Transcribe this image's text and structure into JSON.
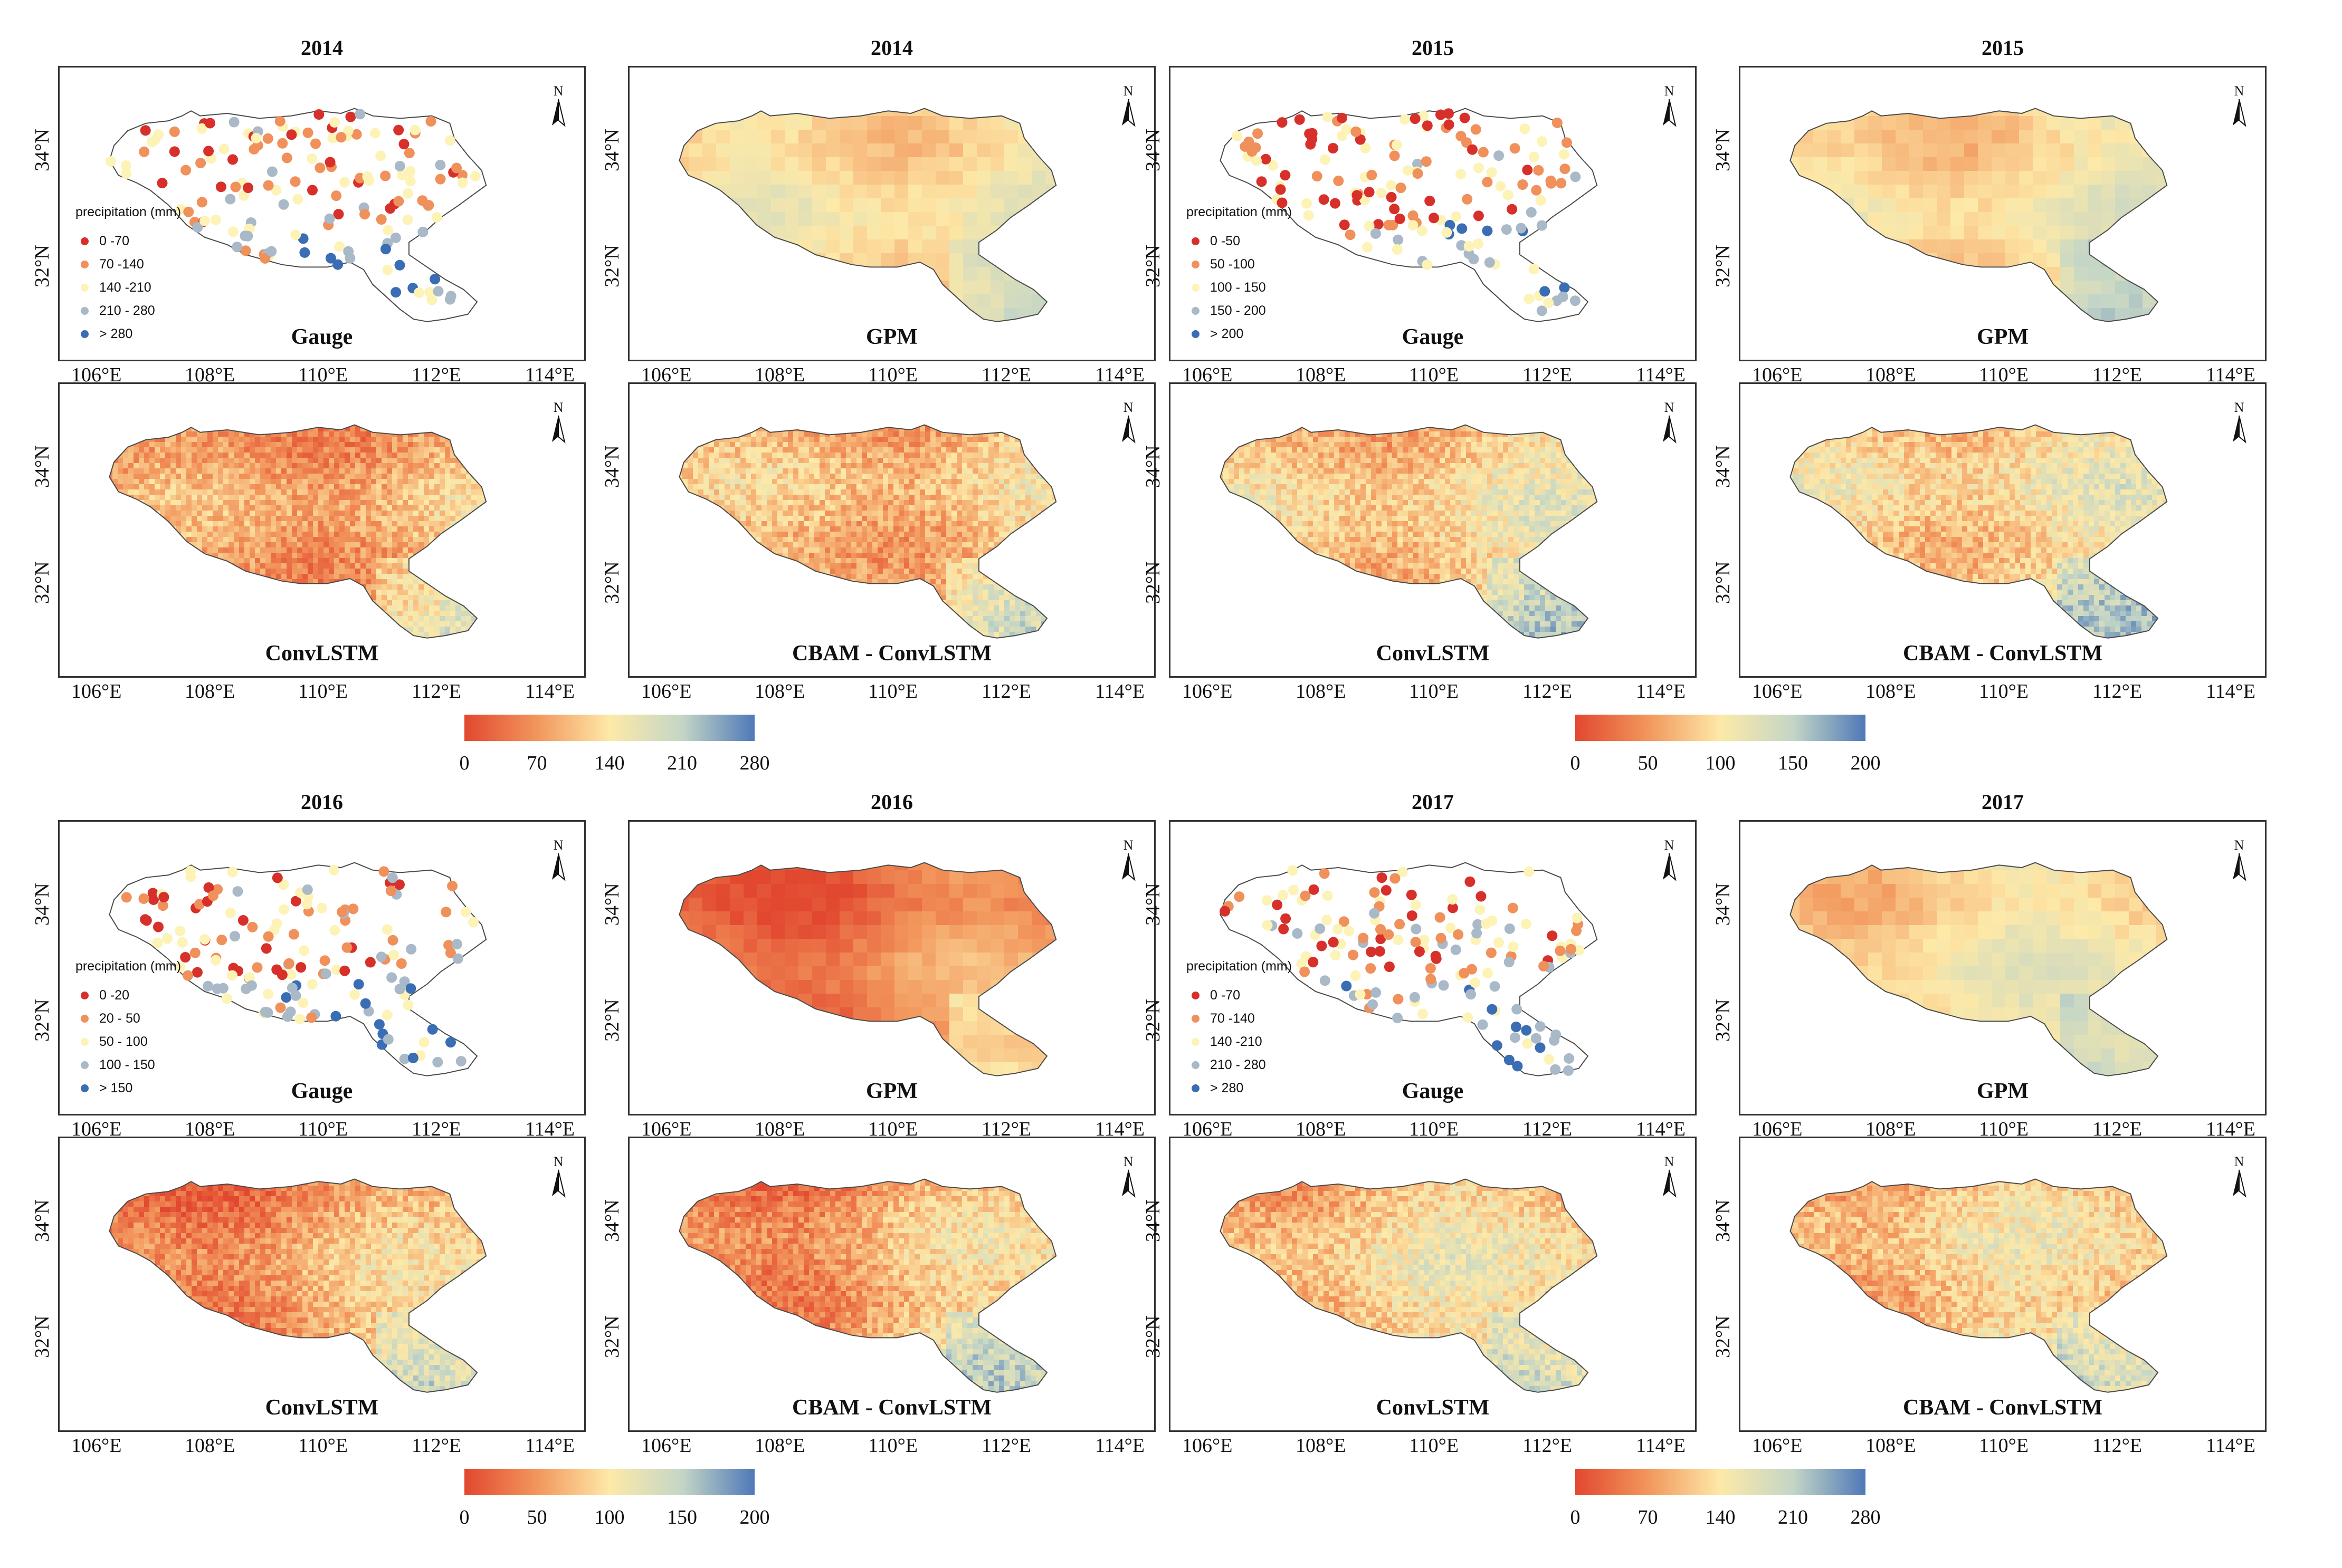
{
  "colors": {
    "ramp": [
      "#e2482f",
      "#f2965c",
      "#fde9a8",
      "#c4d6c6",
      "#4f79b8"
    ],
    "class_colors": [
      "#d7302a",
      "#f0905a",
      "#fdf3b6",
      "#a9b9c8",
      "#3a6db3"
    ],
    "frame": "#333333",
    "outline": "#4a4a4a"
  },
  "axes": {
    "x_ticks": [
      "106°E",
      "108°E",
      "110°E",
      "112°E",
      "114°E"
    ],
    "y_ticks": [
      "34°N",
      "32°N"
    ]
  },
  "north_label": "N",
  "legend_title": "precipitation (mm)",
  "blocks": [
    {
      "year": "2014",
      "panels": [
        {
          "title": "2014",
          "label": "Gauge",
          "type": "gauge",
          "rows": "top",
          "tone": [
            0.3,
            0.45
          ]
        },
        {
          "title": "2014",
          "label": "GPM",
          "type": "coarse",
          "rows": "top",
          "tone": [
            0.45,
            0.55
          ]
        },
        {
          "title": "",
          "label": "ConvLSTM",
          "type": "fine",
          "rows": "bottom",
          "tone": [
            0.22,
            0.42
          ]
        },
        {
          "title": "",
          "label": "CBAM - ConvLSTM",
          "type": "fine",
          "rows": "bottom",
          "tone": [
            0.3,
            0.45
          ]
        }
      ],
      "legend": [
        "0 -70",
        "70 -140",
        "140 -210",
        "210 - 280",
        "> 280"
      ],
      "colorbar": [
        "0",
        "70",
        "140",
        "210",
        "280"
      ]
    },
    {
      "year": "2015",
      "panels": [
        {
          "title": "2015",
          "label": "Gauge",
          "type": "gauge",
          "rows": "top",
          "tone": [
            0.25,
            0.45
          ]
        },
        {
          "title": "2015",
          "label": "GPM",
          "type": "coarse",
          "rows": "top",
          "tone": [
            0.4,
            0.6
          ]
        },
        {
          "title": "",
          "label": "ConvLSTM",
          "type": "fine",
          "rows": "bottom",
          "tone": [
            0.35,
            0.55
          ]
        },
        {
          "title": "",
          "label": "CBAM - ConvLSTM",
          "type": "fine",
          "rows": "bottom",
          "tone": [
            0.4,
            0.55
          ]
        }
      ],
      "legend": [
        "0 -50",
        "50 -100",
        "100 - 150",
        "150 - 200",
        "> 200"
      ],
      "colorbar": [
        "0",
        "50",
        "100",
        "150",
        "200"
      ]
    },
    {
      "year": "2016",
      "panels": [
        {
          "title": "2016",
          "label": "Gauge",
          "type": "gauge",
          "rows": "top",
          "tone": [
            0.2,
            0.6
          ]
        },
        {
          "title": "2016",
          "label": "GPM",
          "type": "coarse",
          "rows": "top",
          "tone": [
            0.05,
            0.35
          ]
        },
        {
          "title": "",
          "label": "ConvLSTM",
          "type": "fine",
          "rows": "bottom",
          "tone": [
            0.1,
            0.55
          ]
        },
        {
          "title": "",
          "label": "CBAM - ConvLSTM",
          "type": "fine",
          "rows": "bottom",
          "tone": [
            0.1,
            0.6
          ]
        }
      ],
      "legend": [
        "0 -20",
        "20 - 50",
        "50 - 100",
        "100 - 150",
        "> 150"
      ],
      "colorbar": [
        "0",
        "50",
        "100",
        "150",
        "200"
      ]
    },
    {
      "year": "2017",
      "panels": [
        {
          "title": "2017",
          "label": "Gauge",
          "type": "gauge",
          "rows": "top",
          "tone": [
            0.3,
            0.45
          ]
        },
        {
          "title": "2017",
          "label": "GPM",
          "type": "coarse",
          "rows": "top",
          "tone": [
            0.4,
            0.6
          ]
        },
        {
          "title": "",
          "label": "ConvLSTM",
          "type": "fine",
          "rows": "bottom",
          "tone": [
            0.35,
            0.55
          ]
        },
        {
          "title": "",
          "label": "CBAM - ConvLSTM",
          "type": "fine",
          "rows": "bottom",
          "tone": [
            0.35,
            0.5
          ]
        }
      ],
      "legend": [
        "0 -70",
        "70 -140",
        "140 -210",
        "210 - 280",
        "> 280"
      ],
      "colorbar": [
        "0",
        "70",
        "140",
        "210",
        "280"
      ]
    }
  ]
}
